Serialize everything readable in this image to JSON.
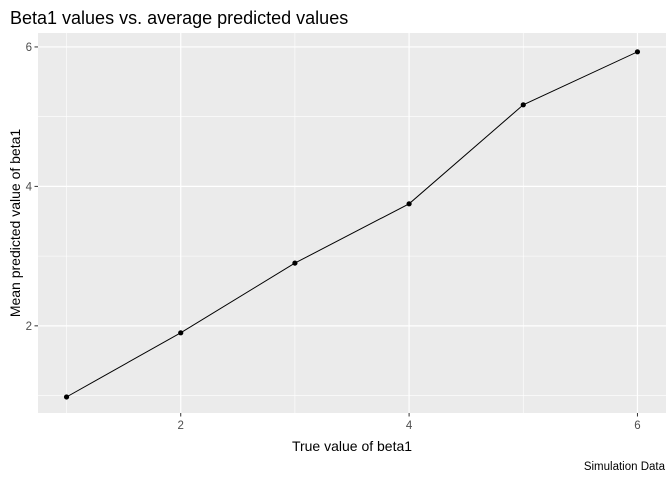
{
  "chart_data": {
    "type": "line",
    "title": "Beta1 values vs. average predicted values",
    "xlabel": "True value of beta1",
    "ylabel": "Mean predicted value of beta1",
    "caption": "Simulation Data",
    "x": [
      1,
      2,
      3,
      4,
      5,
      6
    ],
    "y": [
      0.98,
      1.9,
      2.9,
      3.75,
      5.17,
      5.93
    ],
    "xlim": [
      0.75,
      6.25
    ],
    "ylim": [
      0.75,
      6.2
    ],
    "xticks": [
      2,
      4,
      6
    ],
    "xtick_labels": [
      "2",
      "4",
      "6"
    ],
    "yticks": [
      2,
      4,
      6
    ],
    "ytick_labels": [
      "2",
      "4",
      "6"
    ],
    "grid": true,
    "colors": {
      "panel": "#ebebeb",
      "grid": "#ffffff",
      "line": "#000000",
      "point": "#000000"
    }
  }
}
